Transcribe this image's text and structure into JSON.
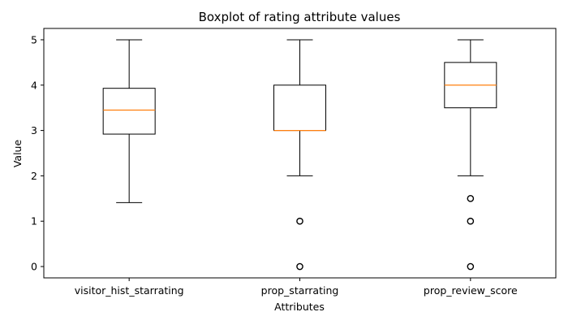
{
  "chart_data": {
    "type": "boxplot",
    "title": "Boxplot of rating attribute values",
    "xlabel": "Attributes",
    "ylabel": "Value",
    "ylim": [
      -0.25,
      5.25
    ],
    "yticks": [
      0,
      1,
      2,
      3,
      4,
      5
    ],
    "grid": false,
    "colors": {
      "box": "#000000",
      "median": "#ff7f0e",
      "outlier": "#000000"
    },
    "categories": [
      "visitor_hist_starrating",
      "prop_starrating",
      "prop_review_score"
    ],
    "series": [
      {
        "category": "visitor_hist_starrating",
        "whisker_low": 1.41,
        "q1": 2.92,
        "median": 3.45,
        "q3": 3.93,
        "whisker_high": 5.0,
        "outliers": []
      },
      {
        "category": "prop_starrating",
        "whisker_low": 2.0,
        "q1": 3.0,
        "median": 3.0,
        "q3": 4.0,
        "whisker_high": 5.0,
        "outliers": [
          1.0,
          0.0
        ]
      },
      {
        "category": "prop_review_score",
        "whisker_low": 2.0,
        "q1": 3.5,
        "median": 4.0,
        "q3": 4.5,
        "whisker_high": 5.0,
        "outliers": [
          1.5,
          1.0,
          0.0
        ]
      }
    ]
  }
}
